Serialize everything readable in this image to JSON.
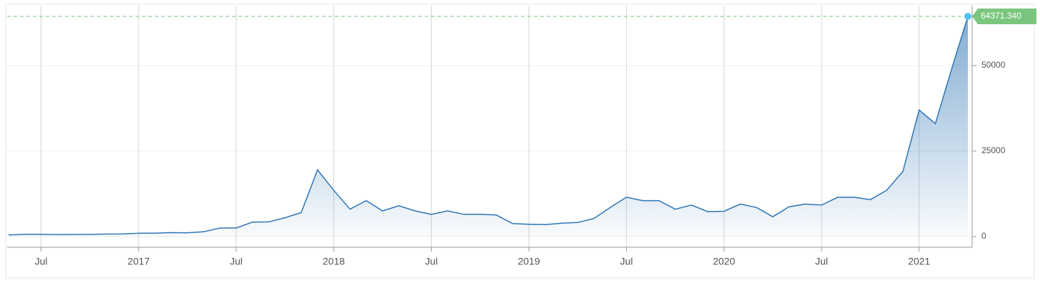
{
  "chart_data": {
    "type": "area",
    "x": [
      "2016-05",
      "2016-06",
      "2016-07",
      "2016-08",
      "2016-09",
      "2016-10",
      "2016-11",
      "2016-12",
      "2017-01",
      "2017-02",
      "2017-03",
      "2017-04",
      "2017-05",
      "2017-06",
      "2017-07",
      "2017-08",
      "2017-09",
      "2017-10",
      "2017-11",
      "2017-12",
      "2018-01",
      "2018-02",
      "2018-03",
      "2018-04",
      "2018-05",
      "2018-06",
      "2018-07",
      "2018-08",
      "2018-09",
      "2018-10",
      "2018-11",
      "2018-12",
      "2019-01",
      "2019-02",
      "2019-03",
      "2019-04",
      "2019-05",
      "2019-06",
      "2019-07",
      "2019-08",
      "2019-09",
      "2019-10",
      "2019-11",
      "2019-12",
      "2020-01",
      "2020-02",
      "2020-03",
      "2020-04",
      "2020-05",
      "2020-06",
      "2020-07",
      "2020-08",
      "2020-09",
      "2020-10",
      "2020-11",
      "2020-12",
      "2021-01",
      "2021-02",
      "2021-03",
      "2021-04"
    ],
    "values": [
      450,
      650,
      650,
      580,
      600,
      620,
      720,
      750,
      950,
      1000,
      1150,
      1100,
      1400,
      2500,
      2500,
      4200,
      4300,
      5500,
      7000,
      19500,
      13500,
      8000,
      10500,
      7500,
      9000,
      7500,
      6500,
      7500,
      6500,
      6500,
      6300,
      3800,
      3600,
      3500,
      3900,
      4100,
      5300,
      8500,
      11500,
      10500,
      10500,
      8000,
      9200,
      7300,
      7400,
      9500,
      8500,
      5800,
      8700,
      9500,
      9200,
      11500,
      11500,
      10800,
      13500,
      19000,
      37000,
      33000,
      49000,
      64371.34
    ],
    "value_labels": [
      null,
      null,
      null,
      null,
      null,
      null,
      null,
      null,
      null,
      null,
      null,
      null,
      null,
      null,
      null,
      null,
      null,
      null,
      null,
      null,
      null,
      null,
      null,
      null,
      null,
      null,
      null,
      null,
      null,
      null,
      null,
      null,
      null,
      null,
      null,
      null,
      null,
      null,
      null,
      null,
      null,
      null,
      null,
      null,
      null,
      null,
      null,
      null,
      null,
      null,
      null,
      null,
      null,
      null,
      null,
      null,
      null,
      null,
      null,
      "64371.340"
    ],
    "color": "#2f75b5",
    "marker_color": "#4fc3f7",
    "last_value_color": "#7bc67e",
    "xlim": [
      "2016-05",
      "2021-04"
    ],
    "xticks": [
      {
        "value": "2016-07",
        "label": "Jul"
      },
      {
        "value": "2017-01",
        "label": "2017"
      },
      {
        "value": "2017-07",
        "label": "Jul"
      },
      {
        "value": "2018-01",
        "label": "2018"
      },
      {
        "value": "2018-07",
        "label": "Jul"
      },
      {
        "value": "2019-01",
        "label": "2019"
      },
      {
        "value": "2019-07",
        "label": "Jul"
      },
      {
        "value": "2020-01",
        "label": "2020"
      },
      {
        "value": "2020-07",
        "label": "Jul"
      },
      {
        "value": "2021-01",
        "label": "2021"
      }
    ],
    "ylim": [
      -3125,
      67500
    ],
    "yticks": [
      0,
      25000,
      50000
    ],
    "grid": true
  }
}
